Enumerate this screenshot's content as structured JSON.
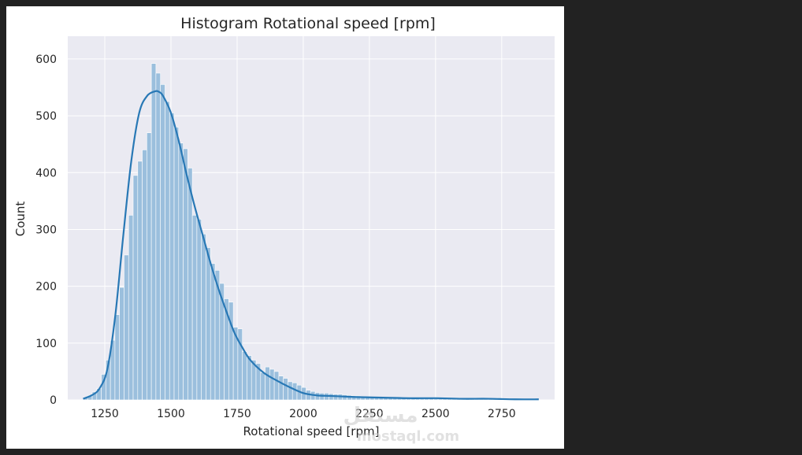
{
  "chart_data": {
    "type": "bar",
    "subtype": "histogram-with-kde",
    "title": "Histogram Rotational speed [rpm]",
    "xlabel": "Rotational speed [rpm]",
    "ylabel": "Count",
    "xlim": [
      1110,
      2950
    ],
    "ylim": [
      0,
      640
    ],
    "x_ticks": [
      1250,
      1500,
      1750,
      2000,
      2250,
      2500,
      2750
    ],
    "y_ticks": [
      0,
      100,
      200,
      300,
      400,
      500,
      600
    ],
    "grid": true,
    "bin_start": 1168,
    "bin_width": 17.2,
    "counts": [
      4,
      8,
      14,
      20,
      45,
      70,
      105,
      150,
      198,
      255,
      325,
      395,
      420,
      440,
      470,
      592,
      575,
      555,
      525,
      505,
      480,
      452,
      442,
      408,
      325,
      318,
      292,
      268,
      240,
      228,
      205,
      178,
      172,
      128,
      125,
      85,
      78,
      70,
      64,
      48,
      58,
      54,
      50,
      42,
      38,
      32,
      30,
      26,
      22,
      17,
      15,
      13,
      12,
      12,
      11,
      10,
      10,
      9,
      8,
      7,
      7,
      6,
      5,
      5,
      4,
      4,
      4,
      4,
      4,
      3,
      3,
      3,
      3,
      3,
      3,
      3,
      3,
      2,
      2,
      2,
      2,
      2,
      2,
      2,
      3,
      3,
      2,
      2,
      2,
      2,
      2,
      2,
      2,
      1,
      1,
      1,
      1,
      1,
      1,
      1
    ],
    "kde": {
      "x": [
        1168,
        1200,
        1230,
        1260,
        1290,
        1320,
        1350,
        1380,
        1410,
        1440,
        1455,
        1470,
        1500,
        1530,
        1560,
        1590,
        1620,
        1650,
        1680,
        1710,
        1740,
        1770,
        1800,
        1850,
        1900,
        1950,
        2000,
        2050,
        2100,
        2150,
        2200,
        2300,
        2400,
        2500,
        2600,
        2700,
        2800,
        2890
      ],
      "y": [
        2,
        8,
        20,
        55,
        150,
        290,
        420,
        505,
        535,
        543,
        542,
        535,
        505,
        455,
        395,
        340,
        290,
        240,
        195,
        155,
        118,
        92,
        70,
        48,
        34,
        22,
        12,
        8,
        7,
        6,
        5,
        4,
        3,
        3,
        2,
        2,
        1,
        1
      ]
    },
    "colors": {
      "bar_fill": "#9bbfdd",
      "bar_edge": "#ffffff",
      "kde_line": "#2878b5",
      "plot_bg": "#eaeaf2",
      "grid": "#ffffff"
    }
  },
  "watermark": {
    "main": "مستقل",
    "sub": "mostaql.com"
  }
}
